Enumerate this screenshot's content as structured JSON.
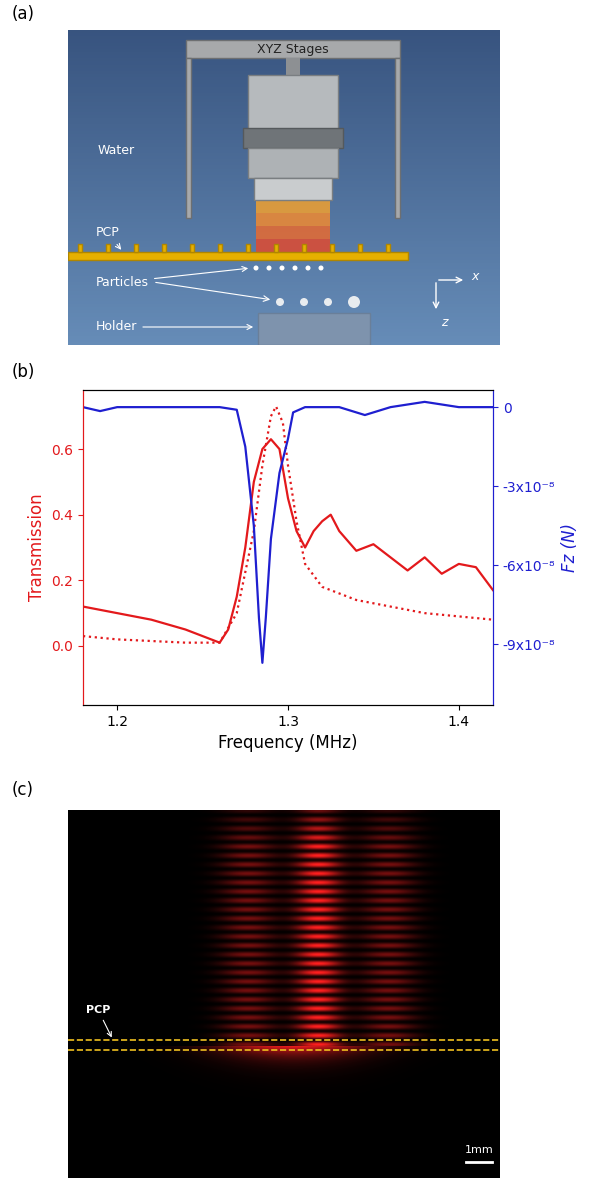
{
  "panel_labels": [
    "(a)",
    "(b)",
    "(c)"
  ],
  "panel_a": {
    "stage_label": "XYZ Stages",
    "medium_label": "Water",
    "plate_label": "PCP",
    "particles_label": "Particles",
    "holder_label": "Holder",
    "x_axis_label": "x",
    "z_axis_label": "z"
  },
  "chart_data": {
    "type": "line",
    "xlabel": "Frequency (MHz)",
    "ylabel": "Transmission",
    "y2label": "Fz (N)",
    "xlim": [
      1.18,
      1.42
    ],
    "xticks": [
      1.2,
      1.3,
      1.4
    ],
    "ylim": [
      -0.18,
      0.78
    ],
    "yticks": [
      0.0,
      0.2,
      0.4,
      0.6
    ],
    "y2lim": [
      -1.13e-07,
      6.5e-09
    ],
    "y2ticks": [
      0,
      {
        "value": -3e-08,
        "label": "-3x10⁻⁸"
      },
      {
        "value": -6e-08,
        "label": "-6x10⁻⁸"
      },
      {
        "value": -9e-08,
        "label": "-9x10⁻⁸"
      }
    ],
    "series": [
      {
        "color": "#e3191c",
        "line_style": "solid",
        "x": [
          1.18,
          1.2,
          1.22,
          1.24,
          1.255,
          1.26,
          1.265,
          1.27,
          1.275,
          1.28,
          1.285,
          1.29,
          1.295,
          1.3,
          1.305,
          1.31,
          1.315,
          1.32,
          1.325,
          1.33,
          1.34,
          1.35,
          1.36,
          1.37,
          1.38,
          1.39,
          1.4,
          1.41,
          1.42
        ],
        "values": [
          0.12,
          0.1,
          0.08,
          0.05,
          0.02,
          0.01,
          0.05,
          0.15,
          0.3,
          0.5,
          0.6,
          0.63,
          0.6,
          0.45,
          0.35,
          0.3,
          0.35,
          0.38,
          0.4,
          0.35,
          0.29,
          0.31,
          0.27,
          0.23,
          0.27,
          0.22,
          0.25,
          0.24,
          0.17
        ]
      },
      {
        "color": "#e3191c",
        "line_style": "dotted",
        "x": [
          1.18,
          1.2,
          1.22,
          1.24,
          1.26,
          1.27,
          1.28,
          1.285,
          1.29,
          1.293,
          1.297,
          1.3,
          1.305,
          1.31,
          1.32,
          1.34,
          1.36,
          1.38,
          1.4,
          1.42
        ],
        "values": [
          0.03,
          0.02,
          0.015,
          0.01,
          0.01,
          0.1,
          0.35,
          0.55,
          0.7,
          0.73,
          0.68,
          0.55,
          0.38,
          0.25,
          0.18,
          0.14,
          0.12,
          0.1,
          0.09,
          0.08
        ]
      },
      {
        "color": "#1f1fd0",
        "line_style": "solid",
        "axis": "y2",
        "x": [
          1.18,
          1.19,
          1.2,
          1.22,
          1.24,
          1.26,
          1.27,
          1.275,
          1.28,
          1.283,
          1.285,
          1.287,
          1.29,
          1.295,
          1.3,
          1.303,
          1.31,
          1.33,
          1.345,
          1.36,
          1.38,
          1.4,
          1.42
        ],
        "values": [
          0.0,
          -1.5e-09,
          0.0,
          0.0,
          0.0,
          0.0,
          -1e-09,
          -1.5e-08,
          -4.5e-08,
          -8e-08,
          -9.7e-08,
          -8e-08,
          -5e-08,
          -2.5e-08,
          -1.2e-08,
          -2e-09,
          0.0,
          0.0,
          -3e-09,
          0.0,
          2e-09,
          0.0,
          0.0
        ]
      }
    ]
  },
  "panel_c": {
    "plate_label": "PCP",
    "scale_bar_label": "1mm"
  }
}
